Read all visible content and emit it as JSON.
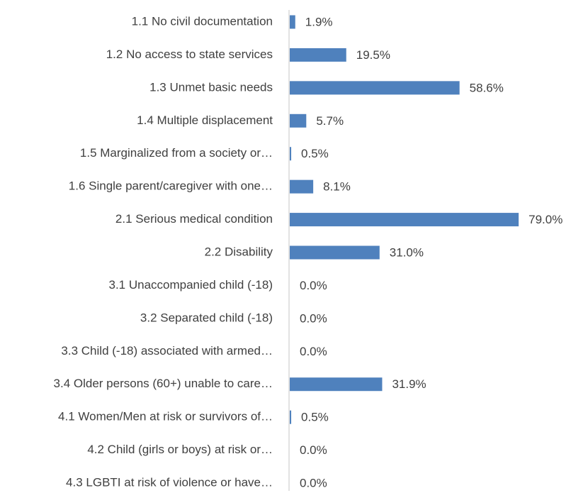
{
  "chart_data": {
    "type": "bar",
    "orientation": "horizontal",
    "categories": [
      "1.1 No civil documentation",
      "1.2 No access to state services",
      "1.3 Unmet basic needs",
      "1.4 Multiple displacement",
      "1.5 Marginalized from a society or…",
      "1.6 Single parent/caregiver with one…",
      "2.1 Serious medical condition",
      "2.2 Disability",
      "3.1 Unaccompanied child (-18)",
      "3.2 Separated child (-18)",
      "3.3 Child (-18) associated with armed…",
      "3.4 Older persons (60+) unable to care…",
      "4.1 Women/Men at risk or survivors of…",
      "4.2 Child (girls or boys) at risk or…",
      "4.3 LGBTI at risk of violence or have…"
    ],
    "values": [
      1.9,
      19.5,
      58.6,
      5.7,
      0.5,
      8.1,
      79.0,
      31.0,
      0.0,
      0.0,
      0.0,
      31.9,
      0.5,
      0.0,
      0.0
    ],
    "value_labels": [
      "1.9%",
      "19.5%",
      "58.6%",
      "5.7%",
      "0.5%",
      "8.1%",
      "79.0%",
      "31.0%",
      "0.0%",
      "0.0%",
      "0.0%",
      "31.9%",
      "0.5%",
      "0.0%",
      "0.0%"
    ],
    "color": "#4f81bd"
  }
}
